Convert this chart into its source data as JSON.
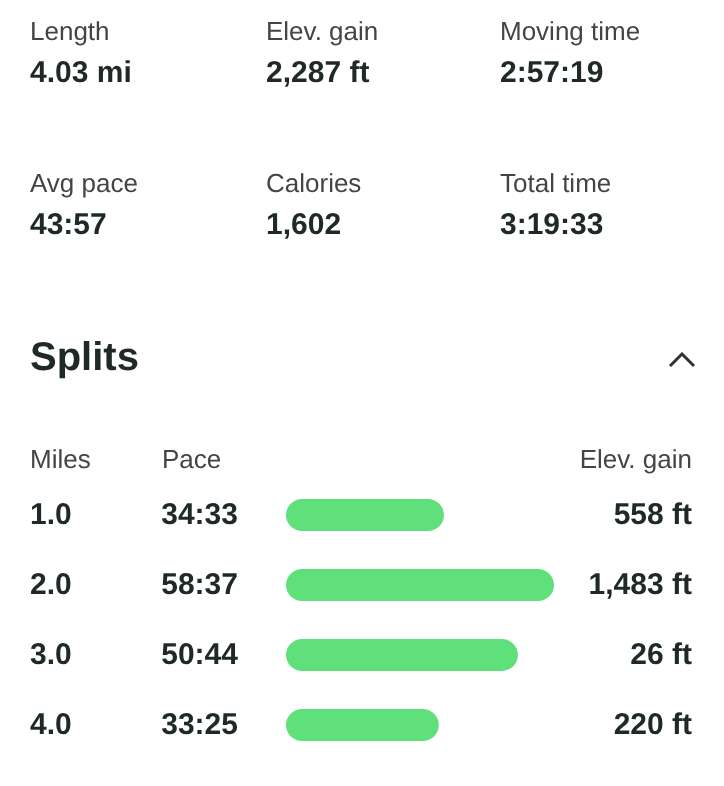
{
  "chart_data": [
    {
      "type": "other",
      "annotations": [
        "Length",
        "4.03 mi",
        "Elev. gain",
        "2,287 ft",
        "Moving time",
        "2:57:19",
        "Avg pace",
        "43:57",
        "Calories",
        "1,602",
        "Total time",
        "3:19:33"
      ]
    },
    {
      "type": "bar",
      "title": "Splits",
      "orientation": "horizontal",
      "xlim": [
        0,
        58.62
      ],
      "tick_labels": "y",
      "ylabel": "Miles",
      "xlabel": "Pace",
      "y2label": "Elev. gain",
      "categories": [
        "1.0",
        "2.0",
        "3.0",
        "4.0"
      ],
      "values": [
        34.55,
        58.62,
        50.73,
        33.42
      ],
      "value_labels": [
        "34:33",
        "58:37",
        "50:44",
        "33:25"
      ],
      "color": "#5fe07a",
      "annotations": [
        "558 ft",
        "1,483 ft",
        "26 ft",
        "220 ft"
      ]
    }
  ]
}
